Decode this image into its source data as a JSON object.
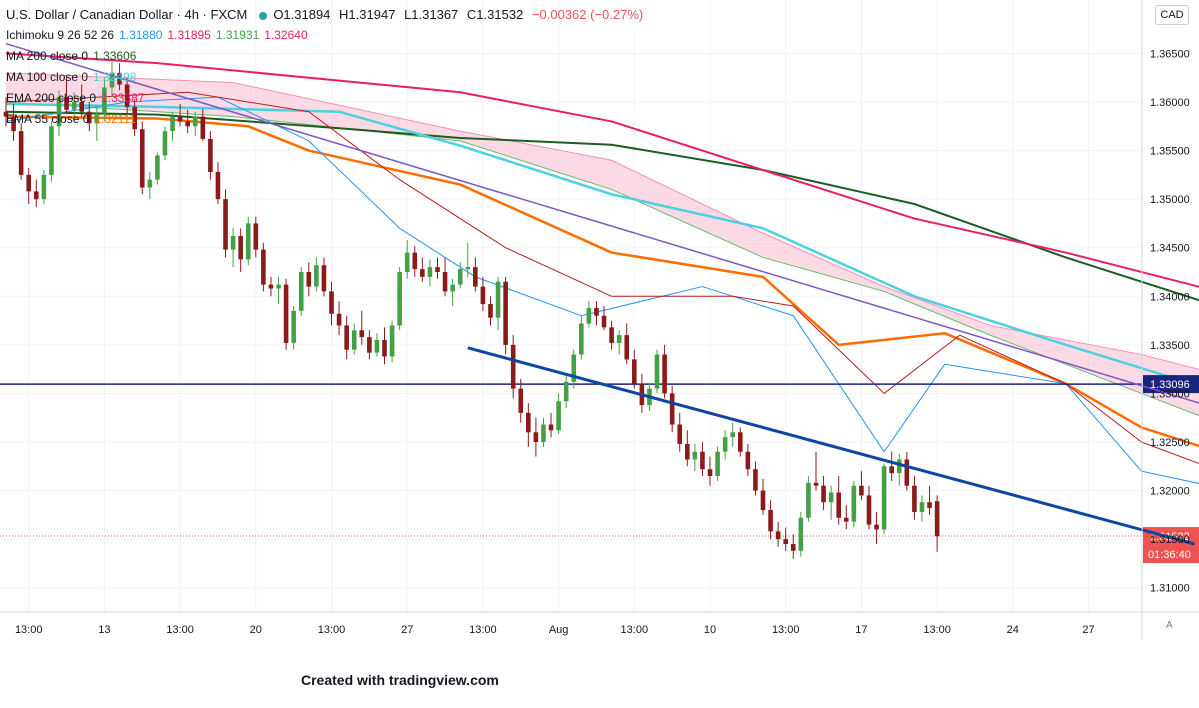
{
  "header": {
    "title": "U.S. Dollar / Canadian Dollar · 4h · FXCM",
    "status_icon": "market-open-dot-icon",
    "ohlc": {
      "o": "O1.31894",
      "h": "H1.31947",
      "l": "L1.31367",
      "c": "C1.31532",
      "chg": "−0.00362 (−0.27%)"
    }
  },
  "indicators": [
    {
      "label": "Ichimoku 9 26 52 26",
      "values": [
        "1.31880",
        "1.31895",
        "1.31931",
        "1.32640"
      ],
      "colors": [
        "#2196f3",
        "#e91e63",
        "#43a047",
        "#e91e63"
      ]
    },
    {
      "label": "MA 200 close 0",
      "values": [
        "1.33606"
      ],
      "colors": [
        "#1b5e20"
      ]
    },
    {
      "label": "MA 100 close 0",
      "values": [
        "1.32498"
      ],
      "colors": [
        "#4dd0e1"
      ]
    },
    {
      "label": "EMA 200 close 0",
      "values": [
        "1.33387"
      ],
      "colors": [
        "#e91e63"
      ]
    },
    {
      "label": "EMA 55 close 0",
      "values": [
        "1.32111"
      ],
      "colors": [
        "#ff6d00"
      ]
    }
  ],
  "currency_button": "CAD",
  "price_axis": {
    "ticks": [
      "1.36500",
      "1.36000",
      "1.35500",
      "1.35000",
      "1.34500",
      "1.34000",
      "1.33500",
      "1.33000",
      "1.32500",
      "1.32000",
      "1.31500",
      "1.31000"
    ],
    "horizontal_line_label": "1.33096",
    "last_price_label": "1.31532",
    "countdown_label": "01:36:40"
  },
  "time_axis": {
    "ticks": [
      "13:00",
      "13",
      "13:00",
      "20",
      "13:00",
      "27",
      "13:00",
      "Aug",
      "13:00",
      "10",
      "13:00",
      "17",
      "13:00",
      "24",
      "27"
    ],
    "auto_label": "A"
  },
  "footer": "Created with tradingview.com",
  "colors": {
    "up": "#26a69a",
    "down": "#ef5350",
    "candle_up": "#43a047",
    "candle_down": "#8b1a1a",
    "tenkan": "#2196f3",
    "kijun": "#b71c1c",
    "cloud": "#f8bbd0",
    "ema55": "#ff6d00",
    "ma100": "#4dd0e1",
    "ema200": "#e91e63",
    "ma200": "#1b5e20",
    "channel_top": "#7e57c2",
    "channel_bottom": "#0d47a1",
    "hline": "#1a237e"
  },
  "chart_data": {
    "type": "candlestick",
    "symbol": "U.S. Dollar / Canadian Dollar",
    "timeframe": "4h",
    "ylim": [
      1.3075,
      1.3705
    ],
    "grid": true,
    "horizontal_line": 1.33096,
    "last_price": 1.31532,
    "trendlines": [
      {
        "name": "upper-channel",
        "points": [
          [
            0,
            1.366
          ],
          [
            196,
            1.32
          ]
        ]
      },
      {
        "name": "lower-channel",
        "points": [
          [
            61,
            1.3347
          ],
          [
            157,
            1.3145
          ]
        ]
      }
    ],
    "moving_averages": [
      {
        "name": "MA 200",
        "points": [
          [
            0,
            1.359
          ],
          [
            20,
            1.3587
          ],
          [
            44,
            1.3573
          ],
          [
            60,
            1.3563
          ],
          [
            80,
            1.3556
          ],
          [
            100,
            1.353
          ],
          [
            120,
            1.3495
          ],
          [
            140,
            1.344
          ],
          [
            160,
            1.339
          ],
          [
            175,
            1.3365
          ],
          [
            186,
            1.336
          ]
        ]
      },
      {
        "name": "EMA 200",
        "points": [
          [
            0,
            1.365
          ],
          [
            20,
            1.364
          ],
          [
            44,
            1.3622
          ],
          [
            60,
            1.361
          ],
          [
            80,
            1.358
          ],
          [
            100,
            1.353
          ],
          [
            120,
            1.348
          ],
          [
            140,
            1.3445
          ],
          [
            160,
            1.3405
          ],
          [
            175,
            1.3365
          ],
          [
            186,
            1.3338
          ]
        ]
      },
      {
        "name": "MA 100",
        "points": [
          [
            0,
            1.3598
          ],
          [
            20,
            1.3595
          ],
          [
            44,
            1.359
          ],
          [
            60,
            1.3555
          ],
          [
            80,
            1.3505
          ],
          [
            100,
            1.347
          ],
          [
            120,
            1.34
          ],
          [
            140,
            1.335
          ],
          [
            160,
            1.3302
          ],
          [
            175,
            1.3268
          ],
          [
            180,
            1.325
          ]
        ]
      },
      {
        "name": "EMA 55",
        "points": [
          [
            0,
            1.3585
          ],
          [
            20,
            1.3583
          ],
          [
            32,
            1.3575
          ],
          [
            40,
            1.355
          ],
          [
            60,
            1.3515
          ],
          [
            80,
            1.3445
          ],
          [
            100,
            1.342
          ],
          [
            110,
            1.335
          ],
          [
            124,
            1.3362
          ],
          [
            140,
            1.331
          ],
          [
            150,
            1.3265
          ],
          [
            160,
            1.324
          ],
          [
            175,
            1.3222
          ],
          [
            186,
            1.3211
          ]
        ]
      },
      {
        "name": "Tenkan-sen",
        "points": [
          [
            0,
            1.358
          ],
          [
            16,
            1.36
          ],
          [
            28,
            1.3605
          ],
          [
            40,
            1.356
          ],
          [
            52,
            1.347
          ],
          [
            62,
            1.342
          ],
          [
            76,
            1.338
          ],
          [
            92,
            1.341
          ],
          [
            104,
            1.338
          ],
          [
            116,
            1.324
          ],
          [
            124,
            1.333
          ],
          [
            140,
            1.331
          ],
          [
            150,
            1.322
          ],
          [
            162,
            1.32
          ],
          [
            176,
            1.319
          ],
          [
            186,
            1.3188
          ]
        ]
      },
      {
        "name": "Kijun-sen",
        "points": [
          [
            0,
            1.36
          ],
          [
            24,
            1.361
          ],
          [
            40,
            1.359
          ],
          [
            52,
            1.352
          ],
          [
            66,
            1.345
          ],
          [
            80,
            1.34
          ],
          [
            96,
            1.34
          ],
          [
            104,
            1.339
          ],
          [
            116,
            1.33
          ],
          [
            126,
            1.336
          ],
          [
            140,
            1.331
          ],
          [
            150,
            1.325
          ],
          [
            162,
            1.3215
          ],
          [
            176,
            1.319
          ],
          [
            186,
            1.319
          ]
        ]
      }
    ],
    "ichimoku_cloud": {
      "top": [
        [
          0,
          1.363
        ],
        [
          30,
          1.362
        ],
        [
          60,
          1.357
        ],
        [
          80,
          1.354
        ],
        [
          100,
          1.3465
        ],
        [
          116,
          1.341
        ],
        [
          130,
          1.337
        ],
        [
          150,
          1.334
        ],
        [
          170,
          1.33
        ],
        [
          180,
          1.3265
        ],
        [
          196,
          1.324
        ]
      ],
      "bottom": [
        [
          0,
          1.36
        ],
        [
          30,
          1.3585
        ],
        [
          60,
          1.356
        ],
        [
          80,
          1.351
        ],
        [
          100,
          1.344
        ],
        [
          116,
          1.3405
        ],
        [
          130,
          1.336
        ],
        [
          150,
          1.33
        ],
        [
          170,
          1.324
        ],
        [
          180,
          1.3205
        ],
        [
          196,
          1.3193
        ]
      ]
    },
    "candles": [
      [
        1.359,
        1.3605,
        1.3575,
        1.3585
      ],
      [
        1.3585,
        1.3598,
        1.356,
        1.357
      ],
      [
        1.357,
        1.3578,
        1.352,
        1.3525
      ],
      [
        1.3525,
        1.3532,
        1.3495,
        1.3508
      ],
      [
        1.3508,
        1.352,
        1.3492,
        1.35
      ],
      [
        1.35,
        1.353,
        1.3495,
        1.3525
      ],
      [
        1.3525,
        1.358,
        1.3518,
        1.3575
      ],
      [
        1.3575,
        1.3612,
        1.3565,
        1.3605
      ],
      [
        1.3605,
        1.3625,
        1.3588,
        1.3592
      ],
      [
        1.3592,
        1.361,
        1.358,
        1.36
      ],
      [
        1.36,
        1.3618,
        1.3585,
        1.359
      ],
      [
        1.359,
        1.36,
        1.357,
        1.3578
      ],
      [
        1.3578,
        1.3595,
        1.356,
        1.3588
      ],
      [
        1.3588,
        1.3625,
        1.358,
        1.3615
      ],
      [
        1.3615,
        1.3645,
        1.3605,
        1.363
      ],
      [
        1.363,
        1.364,
        1.3612,
        1.3618
      ],
      [
        1.3618,
        1.3625,
        1.3585,
        1.3595
      ],
      [
        1.3595,
        1.3603,
        1.3565,
        1.3572
      ],
      [
        1.3572,
        1.358,
        1.3505,
        1.3512
      ],
      [
        1.3512,
        1.3528,
        1.35,
        1.352
      ],
      [
        1.352,
        1.3548,
        1.3515,
        1.3545
      ],
      [
        1.3545,
        1.3575,
        1.354,
        1.357
      ],
      [
        1.357,
        1.359,
        1.356,
        1.3585
      ],
      [
        1.3585,
        1.3598,
        1.3575,
        1.358
      ],
      [
        1.358,
        1.3592,
        1.3568,
        1.3575
      ],
      [
        1.3575,
        1.359,
        1.3565,
        1.3585
      ],
      [
        1.3585,
        1.3593,
        1.356,
        1.3562
      ],
      [
        1.3562,
        1.357,
        1.352,
        1.3528
      ],
      [
        1.3528,
        1.3538,
        1.3495,
        1.35
      ],
      [
        1.35,
        1.351,
        1.344,
        1.3448
      ],
      [
        1.3448,
        1.347,
        1.343,
        1.3462
      ],
      [
        1.3462,
        1.347,
        1.3425,
        1.3438
      ],
      [
        1.3438,
        1.3482,
        1.3432,
        1.3475
      ],
      [
        1.3475,
        1.3482,
        1.344,
        1.3448
      ],
      [
        1.3448,
        1.3455,
        1.3405,
        1.3412
      ],
      [
        1.3412,
        1.342,
        1.34,
        1.3408
      ],
      [
        1.3408,
        1.342,
        1.3392,
        1.3412
      ],
      [
        1.3412,
        1.3418,
        1.3345,
        1.3352
      ],
      [
        1.3352,
        1.339,
        1.3345,
        1.3385
      ],
      [
        1.3385,
        1.343,
        1.338,
        1.3425
      ],
      [
        1.3425,
        1.3435,
        1.34,
        1.341
      ],
      [
        1.341,
        1.344,
        1.3405,
        1.3432
      ],
      [
        1.3432,
        1.344,
        1.34,
        1.3405
      ],
      [
        1.3405,
        1.3415,
        1.337,
        1.3382
      ],
      [
        1.3382,
        1.3395,
        1.336,
        1.337
      ],
      [
        1.337,
        1.338,
        1.3335,
        1.3345
      ],
      [
        1.3345,
        1.3372,
        1.334,
        1.3365
      ],
      [
        1.3365,
        1.3385,
        1.335,
        1.3358
      ],
      [
        1.3358,
        1.3365,
        1.3335,
        1.3342
      ],
      [
        1.3342,
        1.3362,
        1.3338,
        1.3355
      ],
      [
        1.3355,
        1.3368,
        1.333,
        1.3338
      ],
      [
        1.3338,
        1.3375,
        1.3332,
        1.337
      ],
      [
        1.337,
        1.343,
        1.3365,
        1.3425
      ],
      [
        1.3425,
        1.3458,
        1.3418,
        1.3445
      ],
      [
        1.3445,
        1.3452,
        1.342,
        1.3428
      ],
      [
        1.3428,
        1.344,
        1.3415,
        1.342
      ],
      [
        1.342,
        1.3438,
        1.341,
        1.343
      ],
      [
        1.343,
        1.344,
        1.3418,
        1.3425
      ],
      [
        1.3425,
        1.344,
        1.34,
        1.3405
      ],
      [
        1.3405,
        1.3418,
        1.339,
        1.3412
      ],
      [
        1.3412,
        1.3435,
        1.3408,
        1.3428
      ],
      [
        1.3428,
        1.3455,
        1.342,
        1.343
      ],
      [
        1.343,
        1.344,
        1.3405,
        1.341
      ],
      [
        1.341,
        1.342,
        1.3385,
        1.3392
      ],
      [
        1.3392,
        1.34,
        1.337,
        1.3378
      ],
      [
        1.3378,
        1.342,
        1.3365,
        1.3415
      ],
      [
        1.3415,
        1.342,
        1.334,
        1.335
      ],
      [
        1.335,
        1.336,
        1.3295,
        1.3305
      ],
      [
        1.3305,
        1.3315,
        1.327,
        1.328
      ],
      [
        1.328,
        1.329,
        1.3245,
        1.326
      ],
      [
        1.326,
        1.3275,
        1.3235,
        1.325
      ],
      [
        1.325,
        1.3275,
        1.3245,
        1.3268
      ],
      [
        1.3268,
        1.328,
        1.3255,
        1.3262
      ],
      [
        1.3262,
        1.33,
        1.3258,
        1.3292
      ],
      [
        1.3292,
        1.332,
        1.3285,
        1.3312
      ],
      [
        1.3312,
        1.3345,
        1.3305,
        1.334
      ],
      [
        1.334,
        1.338,
        1.3335,
        1.3372
      ],
      [
        1.3372,
        1.3395,
        1.3368,
        1.3388
      ],
      [
        1.3388,
        1.3395,
        1.337,
        1.338
      ],
      [
        1.338,
        1.339,
        1.3365,
        1.3368
      ],
      [
        1.3368,
        1.3375,
        1.3345,
        1.3352
      ],
      [
        1.3352,
        1.3365,
        1.334,
        1.336
      ],
      [
        1.336,
        1.3372,
        1.333,
        1.3335
      ],
      [
        1.3335,
        1.3345,
        1.3305,
        1.331
      ],
      [
        1.331,
        1.332,
        1.328,
        1.3288
      ],
      [
        1.3288,
        1.331,
        1.3282,
        1.3305
      ],
      [
        1.3305,
        1.3345,
        1.33,
        1.334
      ],
      [
        1.334,
        1.335,
        1.3295,
        1.33
      ],
      [
        1.33,
        1.3308,
        1.326,
        1.3268
      ],
      [
        1.3268,
        1.328,
        1.324,
        1.3248
      ],
      [
        1.3248,
        1.3262,
        1.3225,
        1.3232
      ],
      [
        1.3232,
        1.3248,
        1.322,
        1.324
      ],
      [
        1.324,
        1.325,
        1.3215,
        1.3222
      ],
      [
        1.3222,
        1.3235,
        1.3205,
        1.3215
      ],
      [
        1.3215,
        1.3245,
        1.321,
        1.324
      ],
      [
        1.324,
        1.3262,
        1.3232,
        1.3255
      ],
      [
        1.3255,
        1.327,
        1.3245,
        1.326
      ],
      [
        1.326,
        1.3265,
        1.3235,
        1.324
      ],
      [
        1.324,
        1.3248,
        1.3215,
        1.3222
      ],
      [
        1.3222,
        1.323,
        1.3195,
        1.32
      ],
      [
        1.32,
        1.3212,
        1.3175,
        1.318
      ],
      [
        1.318,
        1.319,
        1.315,
        1.3158
      ],
      [
        1.3158,
        1.3168,
        1.3142,
        1.315
      ],
      [
        1.315,
        1.3162,
        1.3138,
        1.3145
      ],
      [
        1.3145,
        1.3155,
        1.313,
        1.3138
      ],
      [
        1.3138,
        1.3178,
        1.3132,
        1.3172
      ],
      [
        1.3172,
        1.3215,
        1.3168,
        1.3208
      ],
      [
        1.3208,
        1.324,
        1.32,
        1.3205
      ],
      [
        1.3205,
        1.3215,
        1.318,
        1.3188
      ],
      [
        1.3188,
        1.3205,
        1.317,
        1.3198
      ],
      [
        1.3198,
        1.3215,
        1.3165,
        1.3172
      ],
      [
        1.3172,
        1.3185,
        1.316,
        1.3168
      ],
      [
        1.3168,
        1.321,
        1.3162,
        1.3205
      ],
      [
        1.3205,
        1.322,
        1.319,
        1.3195
      ],
      [
        1.3195,
        1.3205,
        1.316,
        1.3165
      ],
      [
        1.3165,
        1.3178,
        1.3145,
        1.316
      ],
      [
        1.316,
        1.3228,
        1.3155,
        1.3225
      ],
      [
        1.3225,
        1.324,
        1.321,
        1.3218
      ],
      [
        1.3218,
        1.3238,
        1.3205,
        1.3232
      ],
      [
        1.3232,
        1.324,
        1.32,
        1.3205
      ],
      [
        1.3205,
        1.3215,
        1.317,
        1.3178
      ],
      [
        1.3178,
        1.3195,
        1.3168,
        1.3188
      ],
      [
        1.3188,
        1.3205,
        1.3175,
        1.3182
      ],
      [
        1.3189,
        1.3195,
        1.3137,
        1.3153
      ]
    ]
  }
}
